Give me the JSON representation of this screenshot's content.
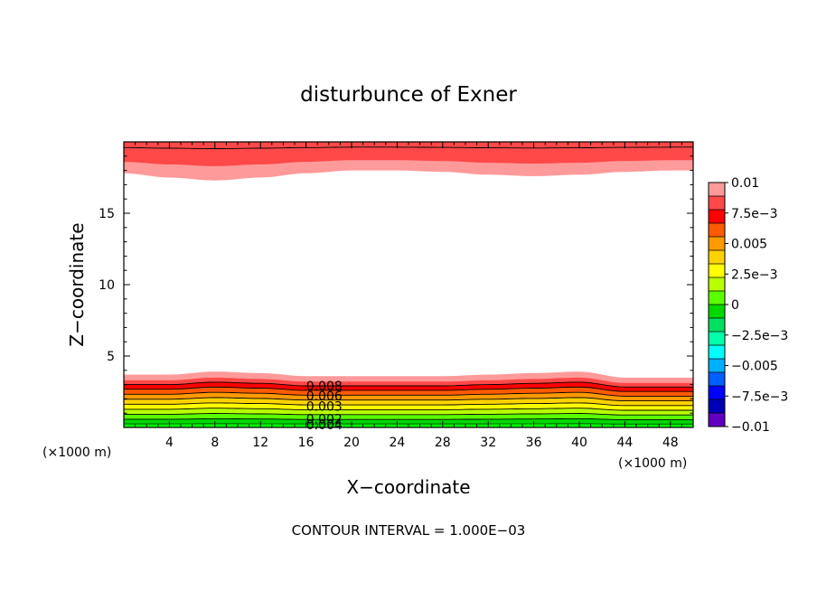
{
  "chart_data": {
    "type": "contour",
    "title": "disturbunce of Exner",
    "xlabel": "X−coordinate",
    "ylabel": "Z−coordinate",
    "x_unit_label": "(×1000 m)",
    "x_unit_label_right": "(×1000 m)",
    "footer": "CONTOUR INTERVAL = 1.000E−03",
    "xlim": [
      0,
      50
    ],
    "ylim": [
      0,
      20
    ],
    "x_ticks": [
      4,
      8,
      12,
      16,
      20,
      24,
      28,
      32,
      36,
      40,
      44,
      48
    ],
    "x_tick_labels": [
      "4",
      "8",
      "12",
      "16",
      "20",
      "24",
      "28",
      "32",
      "36",
      "40",
      "44",
      "48"
    ],
    "y_ticks": [
      5,
      10,
      15
    ],
    "y_tick_labels": [
      "5",
      "10",
      "15"
    ],
    "contour_labels": [
      {
        "text": "0.008",
        "x": 17.6,
        "z": 2.9
      },
      {
        "text": "0.006",
        "x": 17.6,
        "z": 2.2
      },
      {
        "text": "0.003",
        "x": 17.6,
        "z": 1.5
      },
      {
        "text": "0.002",
        "x": 17.6,
        "z": 0.6
      },
      {
        "text": "0.004",
        "x": 17.6,
        "z": 0.2
      }
    ],
    "colorbar": {
      "tick_labels": [
        "0.01",
        "7.5e−3",
        "0.005",
        "2.5e−3",
        "0",
        "−2.5e−3",
        "−0.005",
        "−7.5e−3",
        "−0.01"
      ],
      "tick_values": [
        0.01,
        0.0075,
        0.005,
        0.0025,
        0,
        -0.0025,
        -0.005,
        -0.0075,
        -0.01
      ],
      "colors": [
        "#ff9a9a",
        "#ff4848",
        "#ff0000",
        "#ff5a00",
        "#ff9a00",
        "#ffd200",
        "#ffff00",
        "#b8ff00",
        "#5aff00",
        "#00d800",
        "#00e060",
        "#00ffaa",
        "#00ffff",
        "#00b0ff",
        "#0060ff",
        "#0000ff",
        "#0000b8",
        "#6000c0"
      ]
    },
    "bottom_bands": [
      {
        "color": "#ff9a9a",
        "level": 0.01,
        "z_mid": 3.45
      },
      {
        "color": "#ff4848",
        "level": 0.0095,
        "z_mid": 3.15
      },
      {
        "color": "#ff0000",
        "level": 0.009,
        "z_mid": 2.85
      },
      {
        "color": "#ff5a00",
        "level": 0.008,
        "z_mid": 2.5
      },
      {
        "color": "#ff9a00",
        "level": 0.007,
        "z_mid": 2.15
      },
      {
        "color": "#ffd200",
        "level": 0.006,
        "z_mid": 1.8
      },
      {
        "color": "#ffff00",
        "level": 0.005,
        "z_mid": 1.45
      },
      {
        "color": "#b8ff00",
        "level": 0.004,
        "z_mid": 1.1
      },
      {
        "color": "#5aff00",
        "level": 0.003,
        "z_mid": 0.75
      },
      {
        "color": "#00d800",
        "level": 0.002,
        "z_mid": 0.4
      }
    ],
    "top_bands": [
      {
        "color": "#ff9a9a",
        "level": 0.01,
        "z_mid": 18.1
      },
      {
        "color": "#ff4848",
        "level": 0.0095,
        "z_mid": 19.1
      }
    ],
    "interface_profiles": {
      "x": [
        0,
        4,
        8,
        12,
        16,
        20,
        24,
        28,
        32,
        36,
        40,
        44,
        48,
        50
      ],
      "bottom_offset_z": [
        0.0,
        0.0,
        0.2,
        0.1,
        -0.1,
        -0.1,
        -0.1,
        -0.1,
        0.0,
        0.1,
        0.2,
        -0.2,
        -0.2,
        -0.2
      ],
      "top_offset_z": [
        0.0,
        -0.3,
        -0.5,
        -0.3,
        0.0,
        0.2,
        0.2,
        0.1,
        -0.1,
        -0.2,
        -0.1,
        0.1,
        0.2,
        0.2
      ]
    }
  }
}
